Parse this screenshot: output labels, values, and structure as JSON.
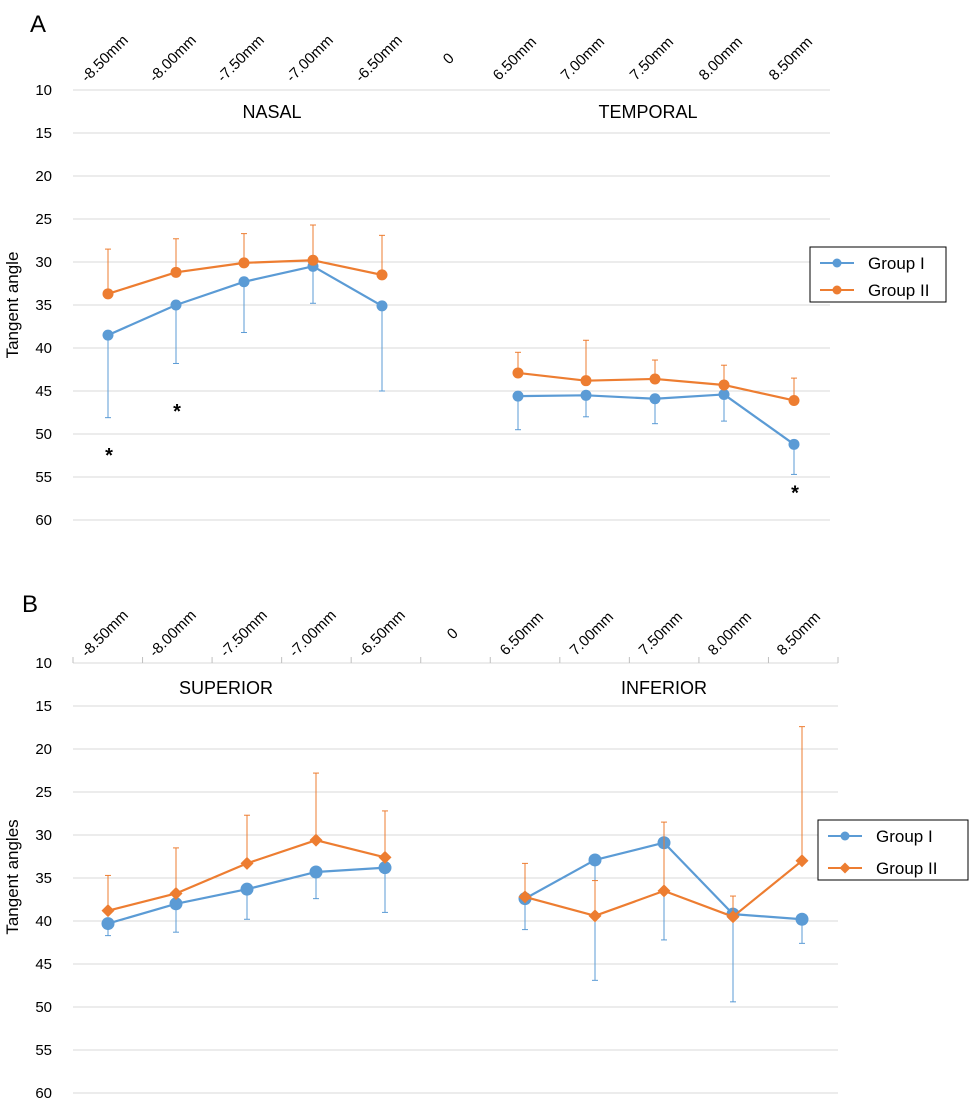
{
  "colors": {
    "group1": "#5b9bd5",
    "group2": "#ed7d31",
    "grid": "#d9d9d9"
  },
  "chart_data": [
    {
      "type": "line",
      "panel_label": "A",
      "title": "",
      "xlabel": "",
      "ylabel": "Tangent angle",
      "ylim": [
        10,
        60
      ],
      "y_inverted": true,
      "y_ticks": [
        "10",
        "15",
        "20",
        "25",
        "30",
        "35",
        "40",
        "45",
        "50",
        "55",
        "60"
      ],
      "categories": [
        "-8.50mm",
        "-8.00mm",
        "-7.50mm",
        "-7.00mm",
        "-6.50mm",
        "0",
        "6.50mm",
        "7.00mm",
        "7.50mm",
        "8.00mm",
        "8.50mm"
      ],
      "section_labels": [
        "NASAL",
        "TEMPORAL"
      ],
      "legend_position": "right",
      "grid": true,
      "series": [
        {
          "name": "Group I",
          "marker": "circle",
          "values": [
            38.5,
            35,
            32.3,
            30.5,
            35.1,
            null,
            45.6,
            45.5,
            45.9,
            45.4,
            51.2
          ],
          "error_low": [
            48.1,
            41.8,
            38.2,
            34.8,
            45.0,
            null,
            49.5,
            48.0,
            48.8,
            48.5,
            54.7
          ],
          "error_high": [
            null,
            null,
            null,
            null,
            null,
            null,
            null,
            null,
            null,
            null,
            null
          ]
        },
        {
          "name": "Group II",
          "marker": "circle",
          "values": [
            33.7,
            31.2,
            30.1,
            29.8,
            31.5,
            null,
            42.9,
            43.8,
            43.6,
            44.3,
            46.1
          ],
          "error_low": [
            null,
            null,
            null,
            null,
            null,
            null,
            null,
            null,
            null,
            null,
            null
          ],
          "error_high": [
            28.5,
            27.3,
            26.7,
            25.7,
            26.9,
            null,
            40.5,
            39.1,
            41.4,
            42.0,
            43.5
          ]
        }
      ],
      "annotations": [
        {
          "text": "*",
          "x": "-8.50mm",
          "y": 52.3
        },
        {
          "text": "*",
          "x": "-8.00mm",
          "y": 47.2
        },
        {
          "text": "*",
          "x": "8.50mm",
          "y": 56.7
        }
      ]
    },
    {
      "type": "line",
      "panel_label": "B",
      "title": "",
      "xlabel": "",
      "ylabel": "Tangent angles",
      "ylim": [
        10,
        60
      ],
      "y_inverted": true,
      "y_ticks": [
        "10",
        "15",
        "20",
        "25",
        "30",
        "35",
        "40",
        "45",
        "50",
        "55",
        "60"
      ],
      "categories": [
        "-8.50mm",
        "-8.00mm",
        "-7.50mm",
        "-7.00mm",
        "-6.50mm",
        "0",
        "6.50mm",
        "7.00mm",
        "7.50mm",
        "8.00mm",
        "8.50mm"
      ],
      "section_labels": [
        "SUPERIOR",
        "INFERIOR"
      ],
      "legend_position": "right",
      "grid": true,
      "series": [
        {
          "name": "Group I",
          "marker": "circle",
          "values": [
            40.3,
            38,
            36.3,
            34.3,
            33.8,
            null,
            37.4,
            32.9,
            30.9,
            39.2,
            39.8
          ],
          "error_low": [
            41.7,
            41.3,
            39.8,
            37.4,
            39.0,
            null,
            41.0,
            46.9,
            42.2,
            49.4,
            42.6
          ],
          "error_high": [
            null,
            null,
            null,
            null,
            null,
            null,
            null,
            null,
            null,
            null,
            null
          ]
        },
        {
          "name": "Group II",
          "marker": "diamond",
          "values": [
            38.8,
            36.8,
            33.3,
            30.6,
            32.6,
            null,
            37.2,
            39.4,
            36.5,
            39.5,
            33
          ],
          "error_low": [
            null,
            null,
            null,
            null,
            null,
            null,
            null,
            null,
            null,
            null,
            null
          ],
          "error_high": [
            34.7,
            31.5,
            27.7,
            22.8,
            27.2,
            null,
            33.3,
            35.3,
            28.5,
            37.1,
            17.4
          ]
        }
      ]
    }
  ]
}
